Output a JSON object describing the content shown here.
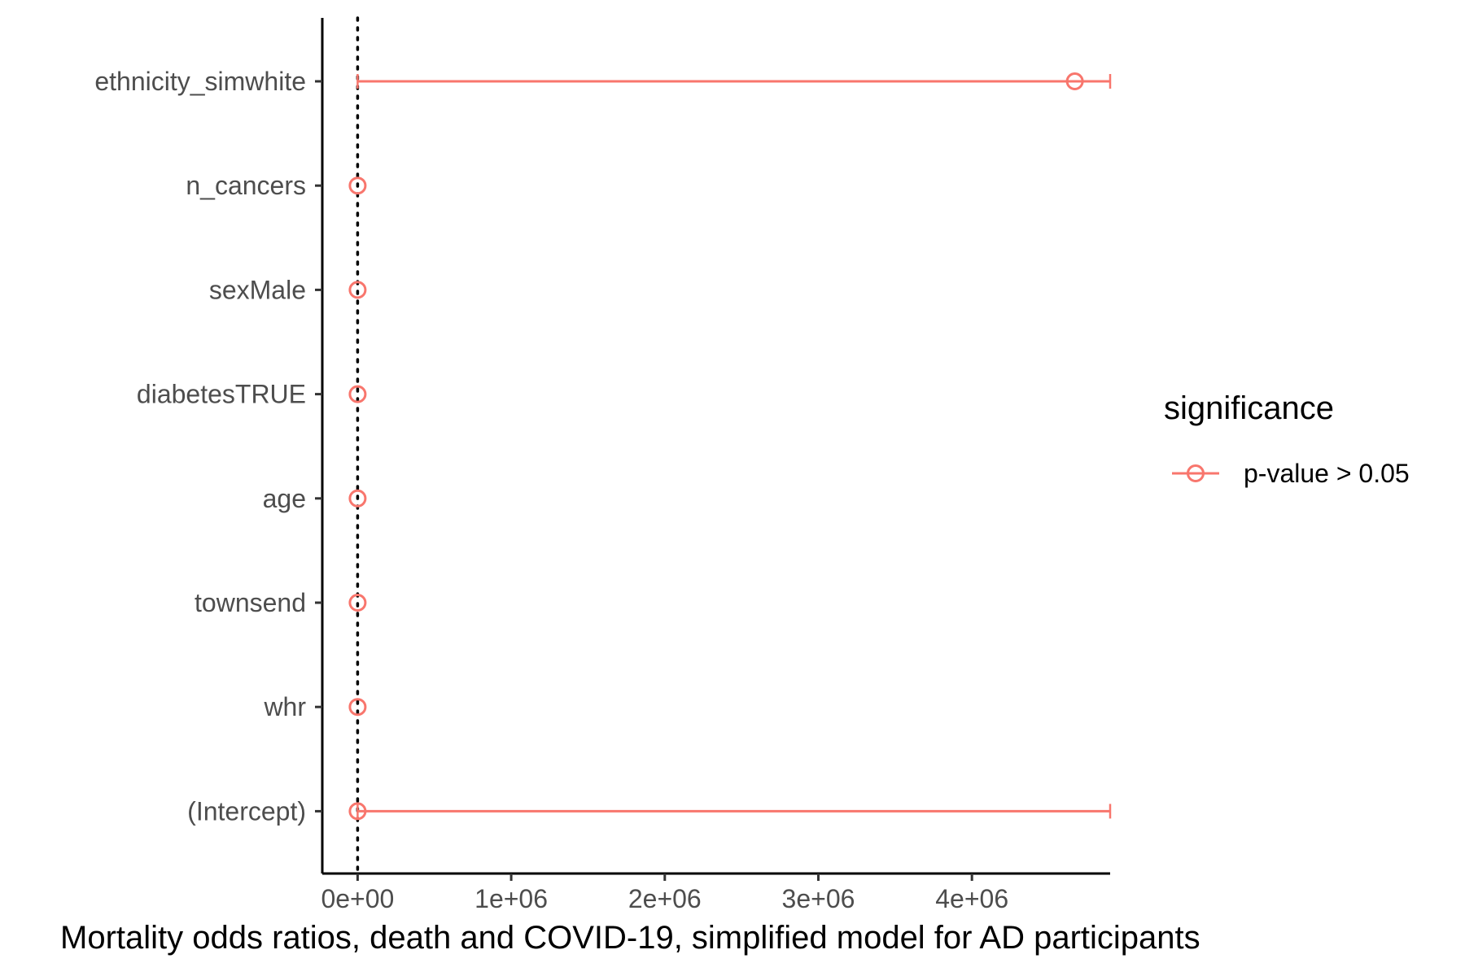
{
  "chart_data": {
    "type": "scatter",
    "subtype": "forest-plot-with-error-bars",
    "caption": "Mortality odds ratios, death and COVID-19, simplified model for AD participants",
    "categories": [
      "(Intercept)",
      "whr",
      "townsend",
      "age",
      "diabetesTRUE",
      "sexMale",
      "n_cancers",
      "ethnicity_simwhite"
    ],
    "series": [
      {
        "name": "p-value > 0.05",
        "color": "#F8766D",
        "points": [
          {
            "label": "(Intercept)",
            "estimate": 0,
            "lower": 0,
            "upper": 4900000
          },
          {
            "label": "whr",
            "estimate": 0,
            "lower": 0,
            "upper": 0
          },
          {
            "label": "townsend",
            "estimate": 0,
            "lower": 0,
            "upper": 0
          },
          {
            "label": "age",
            "estimate": 0,
            "lower": 0,
            "upper": 0
          },
          {
            "label": "diabetesTRUE",
            "estimate": 0,
            "lower": 0,
            "upper": 0
          },
          {
            "label": "sexMale",
            "estimate": 0,
            "lower": 0,
            "upper": 0
          },
          {
            "label": "n_cancers",
            "estimate": 0,
            "lower": 0,
            "upper": 0
          },
          {
            "label": "ethnicity_simwhite",
            "estimate": 4670000,
            "lower": 0,
            "upper": 4900000
          }
        ]
      }
    ],
    "x_ticks": [
      0,
      1000000,
      2000000,
      3000000,
      4000000
    ],
    "x_tick_labels": [
      "0e+00",
      "1e+06",
      "2e+06",
      "3e+06",
      "4e+06"
    ],
    "xlim": [
      -230000,
      4900000
    ],
    "reference_line_x": 0,
    "legend": {
      "title": "significance",
      "position": "right",
      "entries": [
        {
          "label": "p-value > 0.05",
          "color": "#F8766D"
        }
      ]
    },
    "grid": false
  }
}
